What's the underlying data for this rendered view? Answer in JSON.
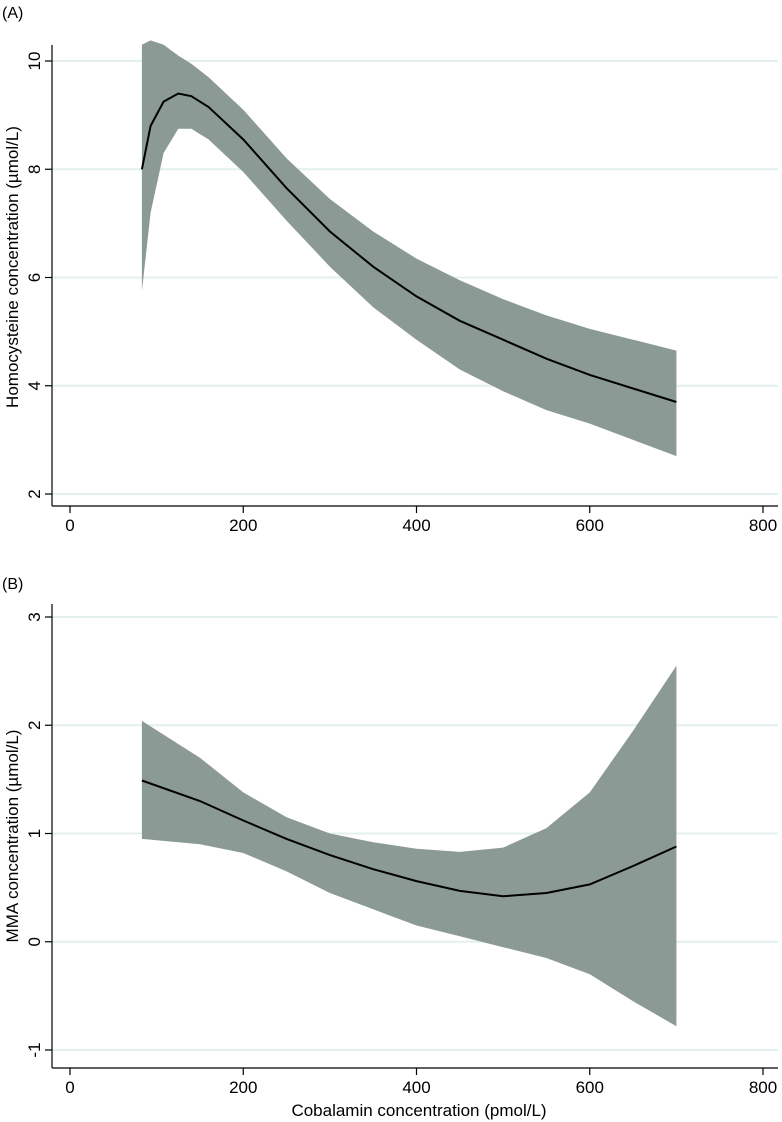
{
  "figure": {
    "colors": {
      "band": "#8c9a96",
      "line": "#000000",
      "grid": "#e4efef",
      "axis": "#000000"
    }
  },
  "chart_data": [
    {
      "type": "line",
      "panel_label": "(A)",
      "title": "",
      "xlabel": "",
      "ylabel": "Homocysteine concentration (µmol/L)",
      "xlim": [
        0,
        800
      ],
      "ylim": [
        2,
        10
      ],
      "xticks": [
        0,
        200,
        400,
        600,
        800
      ],
      "yticks": [
        2,
        4,
        6,
        8,
        10
      ],
      "grid": true,
      "series": [
        {
          "name": "fitted",
          "x": [
            83,
            93,
            108,
            125,
            140,
            160,
            200,
            250,
            300,
            350,
            400,
            450,
            500,
            550,
            600,
            650,
            700
          ],
          "values": [
            8.0,
            8.8,
            9.25,
            9.4,
            9.35,
            9.15,
            8.55,
            7.65,
            6.85,
            6.2,
            5.65,
            5.2,
            4.85,
            4.5,
            4.2,
            3.95,
            3.7
          ],
          "lower": [
            5.75,
            7.2,
            8.3,
            8.75,
            8.75,
            8.55,
            7.95,
            7.05,
            6.2,
            5.45,
            4.85,
            4.3,
            3.9,
            3.55,
            3.3,
            3.0,
            2.7
          ],
          "upper": [
            10.3,
            10.38,
            10.3,
            10.1,
            9.95,
            9.7,
            9.1,
            8.2,
            7.45,
            6.85,
            6.35,
            5.95,
            5.6,
            5.3,
            5.05,
            4.85,
            4.65
          ]
        }
      ]
    },
    {
      "type": "line",
      "panel_label": "(B)",
      "title": "",
      "xlabel": "Cobalamin concentration (pmol/L)",
      "ylabel": "MMA concentration (µmol/L)",
      "xlim": [
        0,
        800
      ],
      "ylim": [
        -1,
        3
      ],
      "xticks": [
        0,
        200,
        400,
        600,
        800
      ],
      "yticks": [
        -1,
        0,
        1,
        2,
        3
      ],
      "grid": true,
      "series": [
        {
          "name": "fitted",
          "x": [
            83,
            150,
            200,
            250,
            300,
            350,
            400,
            450,
            500,
            550,
            600,
            650,
            700
          ],
          "values": [
            1.49,
            1.3,
            1.12,
            0.95,
            0.8,
            0.67,
            0.56,
            0.47,
            0.42,
            0.45,
            0.53,
            0.7,
            0.88
          ],
          "lower": [
            0.95,
            0.9,
            0.82,
            0.65,
            0.45,
            0.3,
            0.15,
            0.05,
            -0.05,
            -0.15,
            -0.3,
            -0.55,
            -0.78
          ],
          "upper": [
            2.04,
            1.7,
            1.38,
            1.15,
            1.0,
            0.92,
            0.86,
            0.83,
            0.87,
            1.05,
            1.38,
            1.95,
            2.55
          ]
        }
      ]
    }
  ]
}
